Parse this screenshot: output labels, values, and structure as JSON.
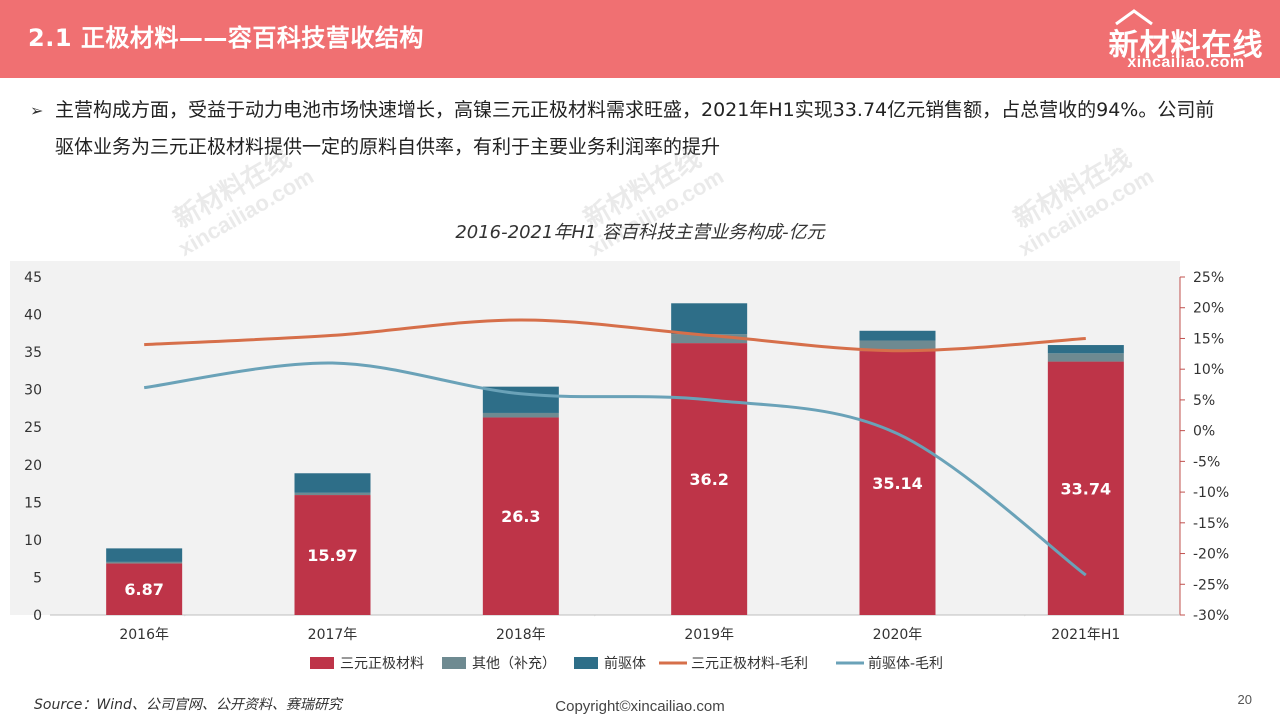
{
  "header": {
    "title": "2.1 正极材料——容百科技营收结构",
    "logo_cn": "新材料在线",
    "logo_en": "xincailiao.com"
  },
  "bullet": {
    "text": "主营构成方面，受益于动力电池市场快速增长，高镍三元正极材料需求旺盛，2021年H1实现33.74亿元销售额，占总营收的94%。公司前驱体业务为三元正极材料提供一定的原料自供率，有利于主要业务利润率的提升"
  },
  "watermark": {
    "cn": "新材料在线",
    "en": "xincailiao.com"
  },
  "chart_data": {
    "type": "bar",
    "stacked": true,
    "title": "2016-2021年H1 容百科技主营业务构成-亿元",
    "categories": [
      "2016年",
      "2017年",
      "2018年",
      "2019年",
      "2020年",
      "2021年H1"
    ],
    "y_left": {
      "min": 0,
      "max": 45,
      "step": 5
    },
    "y_right": {
      "min": -30,
      "max": 25,
      "step": 5,
      "unit": "%"
    },
    "series": [
      {
        "name": "三元正极材料",
        "kind": "bar",
        "axis": "left",
        "color": "#be3448",
        "values": [
          6.87,
          15.97,
          26.3,
          36.2,
          35.14,
          33.74
        ],
        "labels": [
          "6.87",
          "15.97",
          "26.3",
          "36.2",
          "35.14",
          "33.74"
        ]
      },
      {
        "name": "其他（补充）",
        "kind": "bar",
        "axis": "left",
        "color": "#6e8a91",
        "values": [
          0.2,
          0.3,
          0.6,
          1.2,
          1.4,
          1.1
        ]
      },
      {
        "name": "前驱体",
        "kind": "bar",
        "axis": "left",
        "color": "#2e6e88",
        "values": [
          1.8,
          2.6,
          3.5,
          4.1,
          1.3,
          1.1
        ]
      },
      {
        "name": "三元正极材料-毛利",
        "kind": "line",
        "axis": "right",
        "color": "#d66f4a",
        "values": [
          14,
          15.5,
          18,
          15.5,
          13,
          15
        ]
      },
      {
        "name": "前驱体-毛利",
        "kind": "line",
        "axis": "right",
        "color": "#6aa2b8",
        "values": [
          7,
          11,
          6,
          5,
          -0.5,
          -23.5
        ]
      }
    ],
    "legend_position": "bottom"
  },
  "footer": {
    "source": "Source：Wind、公司官网、公开资料、赛瑞研究",
    "copyright": "Copyright©xincailiao.com",
    "page": "20"
  }
}
